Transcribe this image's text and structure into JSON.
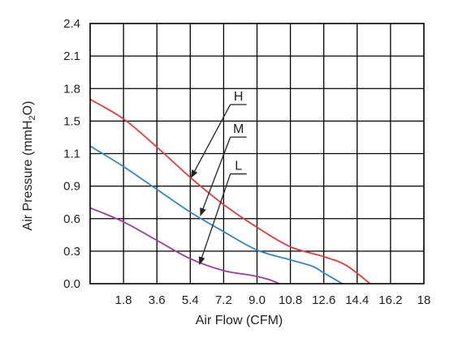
{
  "chart_data": {
    "type": "line",
    "xlabel": "Air Flow (CFM)",
    "ylabel_parts": [
      "Air Pressure (mmH",
      "2",
      "O)"
    ],
    "x_ticks": [
      "1.8",
      "3.6",
      "5.4",
      "7.2",
      "9.0",
      "10.8",
      "12.6",
      "14.4",
      "16.2",
      "18"
    ],
    "y_ticks": [
      "0.0",
      "0.3",
      "0.6",
      "0.9",
      "1.1",
      "1.5",
      "1.8",
      "2.1",
      "2.4"
    ],
    "xlim": [
      0,
      18
    ],
    "ylim": [
      0,
      2.4
    ],
    "grid": true,
    "series": [
      {
        "name": "H",
        "color": "#e8383d",
        "points": [
          [
            0,
            1.7
          ],
          [
            1.8,
            1.52
          ],
          [
            3.6,
            1.26
          ],
          [
            5.4,
            0.98
          ],
          [
            7.2,
            0.73
          ],
          [
            9.0,
            0.52
          ],
          [
            10.8,
            0.34
          ],
          [
            12.6,
            0.25
          ],
          [
            13.8,
            0.17
          ],
          [
            15.1,
            0.0
          ]
        ],
        "label_at": [
          8.0,
          1.69
        ],
        "arrow_to": [
          5.45,
          0.98
        ]
      },
      {
        "name": "M",
        "color": "#2f87c8",
        "points": [
          [
            0,
            1.27
          ],
          [
            1.8,
            1.08
          ],
          [
            3.6,
            0.87
          ],
          [
            5.4,
            0.66
          ],
          [
            7.2,
            0.48
          ],
          [
            9.0,
            0.31
          ],
          [
            10.8,
            0.22
          ],
          [
            12.0,
            0.16
          ],
          [
            12.6,
            0.1
          ],
          [
            13.6,
            0.0
          ]
        ],
        "label_at": [
          8.0,
          1.39
        ],
        "arrow_to": [
          5.95,
          0.63
        ]
      },
      {
        "name": "L",
        "color": "#9b3aa2",
        "points": [
          [
            0,
            0.7
          ],
          [
            1.8,
            0.57
          ],
          [
            3.6,
            0.4
          ],
          [
            5.4,
            0.23
          ],
          [
            7.2,
            0.12
          ],
          [
            8.6,
            0.08
          ],
          [
            9.6,
            0.04
          ],
          [
            10.2,
            0.0
          ]
        ],
        "label_at": [
          8.0,
          1.05
        ],
        "arrow_to": [
          5.9,
          0.18
        ]
      }
    ]
  }
}
